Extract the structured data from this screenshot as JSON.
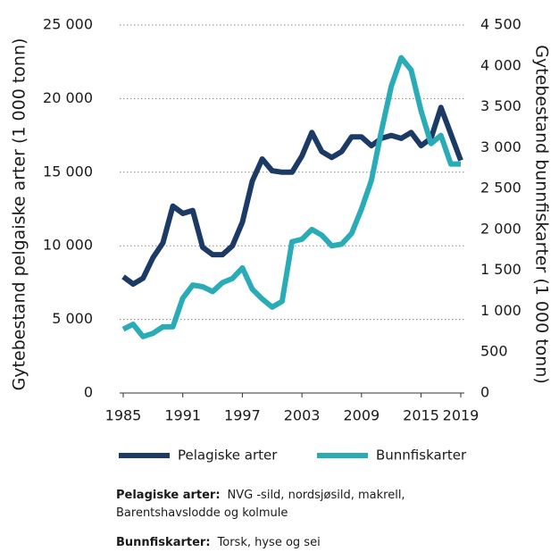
{
  "chart_data": {
    "type": "line",
    "ylabel": "Gytebestand pelgaiske arter (1 000 tonn)",
    "y2label": "Gytebestand bunnfiskarter (1 000 tonn)",
    "x": [
      1985,
      1986,
      1987,
      1988,
      1989,
      1990,
      1991,
      1992,
      1993,
      1994,
      1995,
      1996,
      1997,
      1998,
      1999,
      2000,
      2001,
      2002,
      2003,
      2004,
      2005,
      2006,
      2007,
      2008,
      2009,
      2010,
      2011,
      2012,
      2013,
      2014,
      2015,
      2016,
      2017,
      2018,
      2019
    ],
    "xlim": [
      1985,
      2019
    ],
    "xticks": [
      1985,
      1991,
      1997,
      2003,
      2009,
      2015,
      2019
    ],
    "ylim": [
      0,
      25000
    ],
    "yticks": [
      0,
      {
        "value": 5000,
        "label": "5 000"
      },
      {
        "value": 10000,
        "label": "10 000"
      },
      {
        "value": 15000,
        "label": "15 000"
      },
      {
        "value": 20000,
        "label": "20 000"
      },
      {
        "value": 25000,
        "label": "25 000"
      }
    ],
    "y2lim": [
      0,
      4500
    ],
    "y2ticks": [
      0,
      500,
      {
        "value": 1000,
        "label": "1 000"
      },
      {
        "value": 1500,
        "label": "1 500"
      },
      {
        "value": 2000,
        "label": "2 000"
      },
      {
        "value": 2500,
        "label": "2 500"
      },
      {
        "value": 3000,
        "label": "3 000"
      },
      {
        "value": 3500,
        "label": "3 500"
      },
      {
        "value": 4000,
        "label": "4 000"
      },
      {
        "value": 4500,
        "label": "4 500"
      }
    ],
    "grid": true,
    "legend": "bottom",
    "series": [
      {
        "name": "Pelagiske arter",
        "color": "#1b3a66",
        "axis": "y",
        "values": [
          7900,
          7400,
          7800,
          9200,
          10200,
          12700,
          12200,
          12400,
          9900,
          9400,
          9400,
          10000,
          11600,
          14400,
          15900,
          15100,
          15000,
          15000,
          16100,
          17700,
          16400,
          16000,
          16400,
          17400,
          17400,
          16800,
          17300,
          17500,
          17300,
          17700,
          16800,
          17300,
          19400,
          17600,
          15800
        ]
      },
      {
        "name": "Bunnfiskarter",
        "color": "#2aacb8",
        "axis": "y2",
        "values": [
          780,
          840,
          690,
          730,
          810,
          810,
          1160,
          1320,
          1300,
          1240,
          1350,
          1400,
          1530,
          1270,
          1150,
          1050,
          1120,
          1850,
          1880,
          2000,
          1930,
          1800,
          1820,
          1950,
          2250,
          2600,
          3200,
          3750,
          4100,
          3950,
          3450,
          3050,
          3150,
          2800,
          2800
        ]
      }
    ],
    "notes": [
      {
        "term": "Pelagiske arter:",
        "text": "NVG -sild, nordsjøsild, makrell, Barentshavslodde og kolmule"
      },
      {
        "term": "Bunnfiskarter:",
        "text": "Torsk, hyse og sei"
      }
    ]
  }
}
